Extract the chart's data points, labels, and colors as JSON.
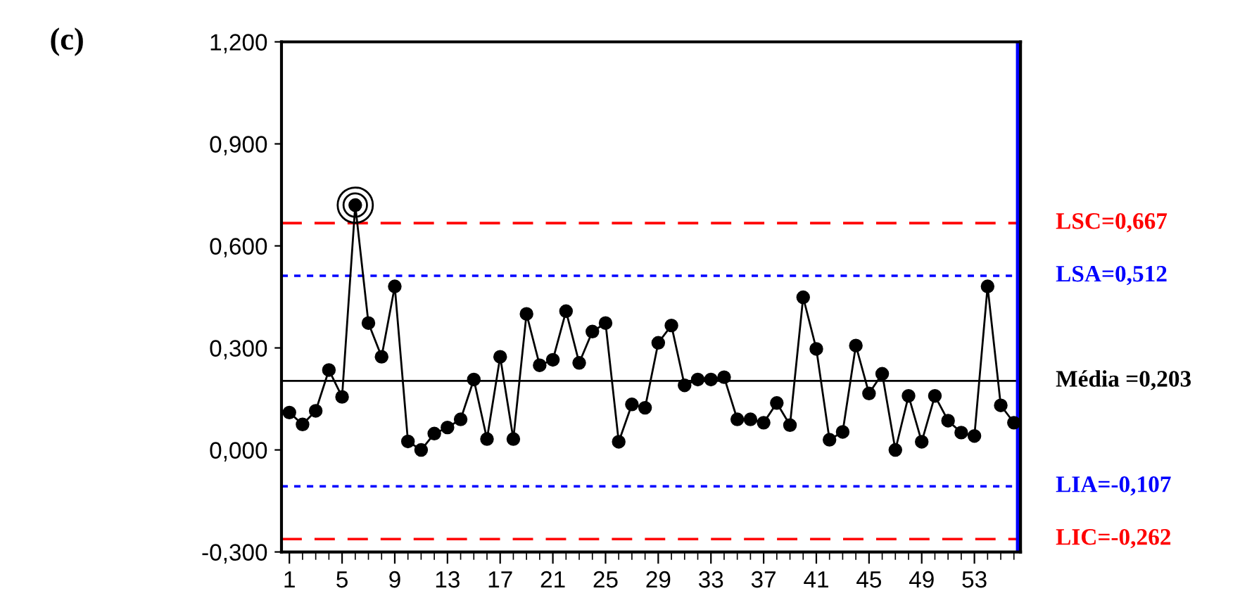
{
  "chart_data": {
    "type": "line",
    "title": "(c)",
    "x": [
      1,
      2,
      3,
      4,
      5,
      6,
      7,
      8,
      9,
      10,
      11,
      12,
      13,
      14,
      15,
      16,
      17,
      18,
      19,
      20,
      21,
      22,
      23,
      24,
      25,
      26,
      27,
      28,
      29,
      30,
      31,
      32,
      33,
      34,
      35,
      36,
      37,
      38,
      39,
      40,
      41,
      42,
      43,
      44,
      45,
      46,
      47,
      48,
      49,
      50,
      51,
      52,
      53,
      54,
      55,
      56
    ],
    "series": [
      {
        "color": "#000000",
        "values": [
          0.11,
          0.075,
          0.115,
          0.235,
          0.156,
          0.72,
          0.373,
          0.274,
          0.481,
          0.025,
          0.0,
          0.048,
          0.066,
          0.09,
          0.207,
          0.032,
          0.274,
          0.032,
          0.4,
          0.249,
          0.265,
          0.408,
          0.256,
          0.348,
          0.373,
          0.024,
          0.134,
          0.124,
          0.315,
          0.366,
          0.19,
          0.207,
          0.207,
          0.214,
          0.09,
          0.09,
          0.08,
          0.138,
          0.073,
          0.449,
          0.297,
          0.03,
          0.053,
          0.307,
          0.166,
          0.224,
          0.0,
          0.159,
          0.024,
          0.159,
          0.086,
          0.051,
          0.041,
          0.481,
          0.131,
          0.08
        ]
      }
    ],
    "marker": "circle",
    "line_style": "solid",
    "xlim": [
      0.4,
      56.5
    ],
    "xticks": [
      1,
      5,
      9,
      13,
      17,
      21,
      25,
      29,
      33,
      37,
      41,
      45,
      49,
      53
    ],
    "ylim": [
      -0.3,
      1.2
    ],
    "yticks": [
      {
        "value": -0.3,
        "label": "-0,300"
      },
      {
        "value": 0.0,
        "label": "0,000"
      },
      {
        "value": 0.3,
        "label": "0,300"
      },
      {
        "value": 0.6,
        "label": "0,600"
      },
      {
        "value": 0.9,
        "label": "0,900"
      },
      {
        "value": 1.2,
        "label": "1,200"
      }
    ],
    "ref_lines": [
      {
        "axis": "y",
        "value": 0.667,
        "label": "LSC=0,667",
        "color": "#ff0000",
        "line_style": "dashed"
      },
      {
        "axis": "y",
        "value": 0.512,
        "label": "LSA=0,512",
        "color": "#0000ff",
        "line_style": "dotted"
      },
      {
        "axis": "y",
        "value": 0.203,
        "label": "Média =0,203",
        "color": "#000000",
        "line_style": "solid"
      },
      {
        "axis": "y",
        "value": -0.107,
        "label": "LIA=-0,107",
        "color": "#0000ff",
        "line_style": "dotted"
      },
      {
        "axis": "y",
        "value": -0.262,
        "label": "LIC=-0,262",
        "color": "#ff0000",
        "line_style": "dashed"
      },
      {
        "axis": "x",
        "value": 56.3,
        "color": "#0000ff",
        "line_style": "solid"
      }
    ],
    "grid": false,
    "legend": false
  }
}
